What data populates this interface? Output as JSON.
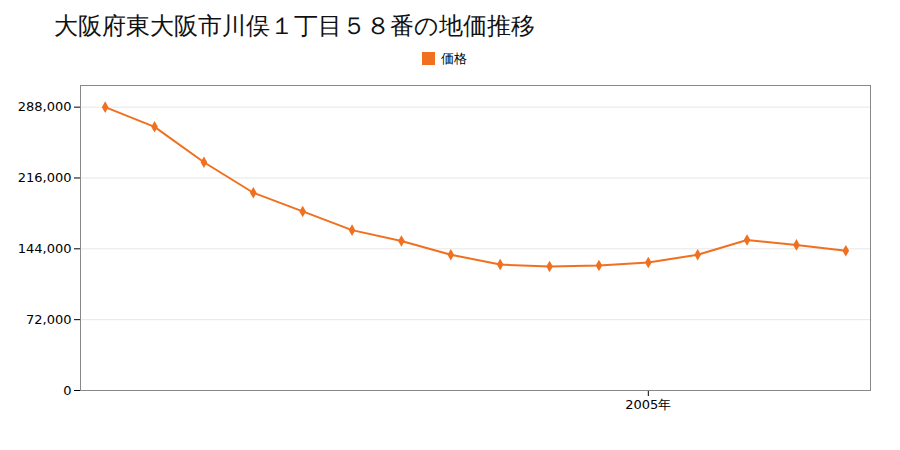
{
  "chart_data": {
    "type": "line",
    "title": "大阪府東大阪市川俣１丁目５８番の地価推移",
    "x": [
      1994,
      1995,
      1996,
      1997,
      1998,
      1999,
      2000,
      2001,
      2002,
      2003,
      2004,
      2005,
      2006,
      2007,
      2008,
      2009
    ],
    "series": [
      {
        "name": "価格",
        "color": "#f07020",
        "marker": "diamond",
        "values": [
          288000,
          268000,
          232000,
          201000,
          182000,
          163000,
          152000,
          138000,
          128000,
          126000,
          127000,
          130000,
          138000,
          153000,
          148000,
          142000
        ]
      }
    ],
    "xlim": [
      1993.5,
      2009.5
    ],
    "xticks": [
      {
        "value": 2005,
        "label": "2005年"
      }
    ],
    "ylim": [
      0,
      310000
    ],
    "yticks": [
      0,
      {
        "value": 72000,
        "label": "72,000"
      },
      {
        "value": 144000,
        "label": "144,000"
      },
      {
        "value": 216000,
        "label": "216,000"
      },
      {
        "value": 288000,
        "label": "288,000"
      }
    ],
    "grid": true,
    "legend": "top"
  }
}
